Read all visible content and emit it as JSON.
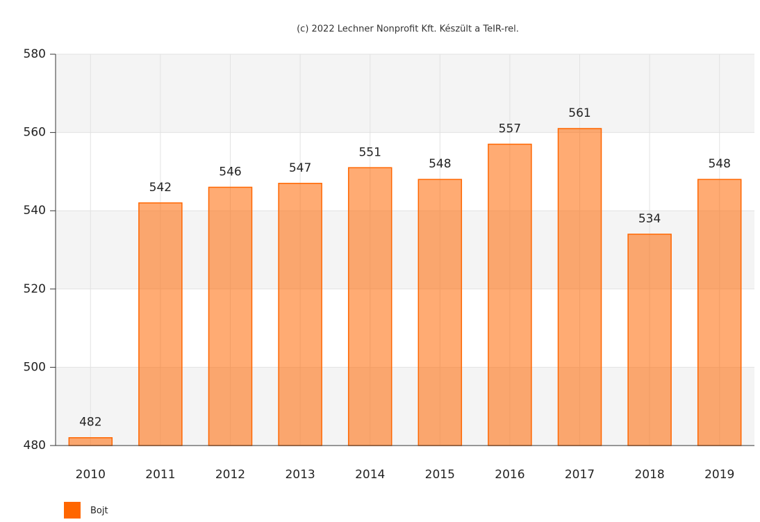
{
  "chart_data": {
    "type": "bar",
    "title": "(c) 2022 Lechner Nonprofit Kft. Készült a TeIR-rel.",
    "categories": [
      "2010",
      "2011",
      "2012",
      "2013",
      "2014",
      "2015",
      "2016",
      "2017",
      "2018",
      "2019"
    ],
    "series": [
      {
        "name": "Bojt",
        "color": "#ff6600",
        "values": [
          482,
          542,
          546,
          547,
          551,
          548,
          557,
          561,
          534,
          548
        ]
      }
    ],
    "ylim": [
      480,
      580
    ],
    "yticks": [
      480,
      500,
      520,
      540,
      560,
      580
    ],
    "grid": true,
    "legend": "bottom-left"
  }
}
